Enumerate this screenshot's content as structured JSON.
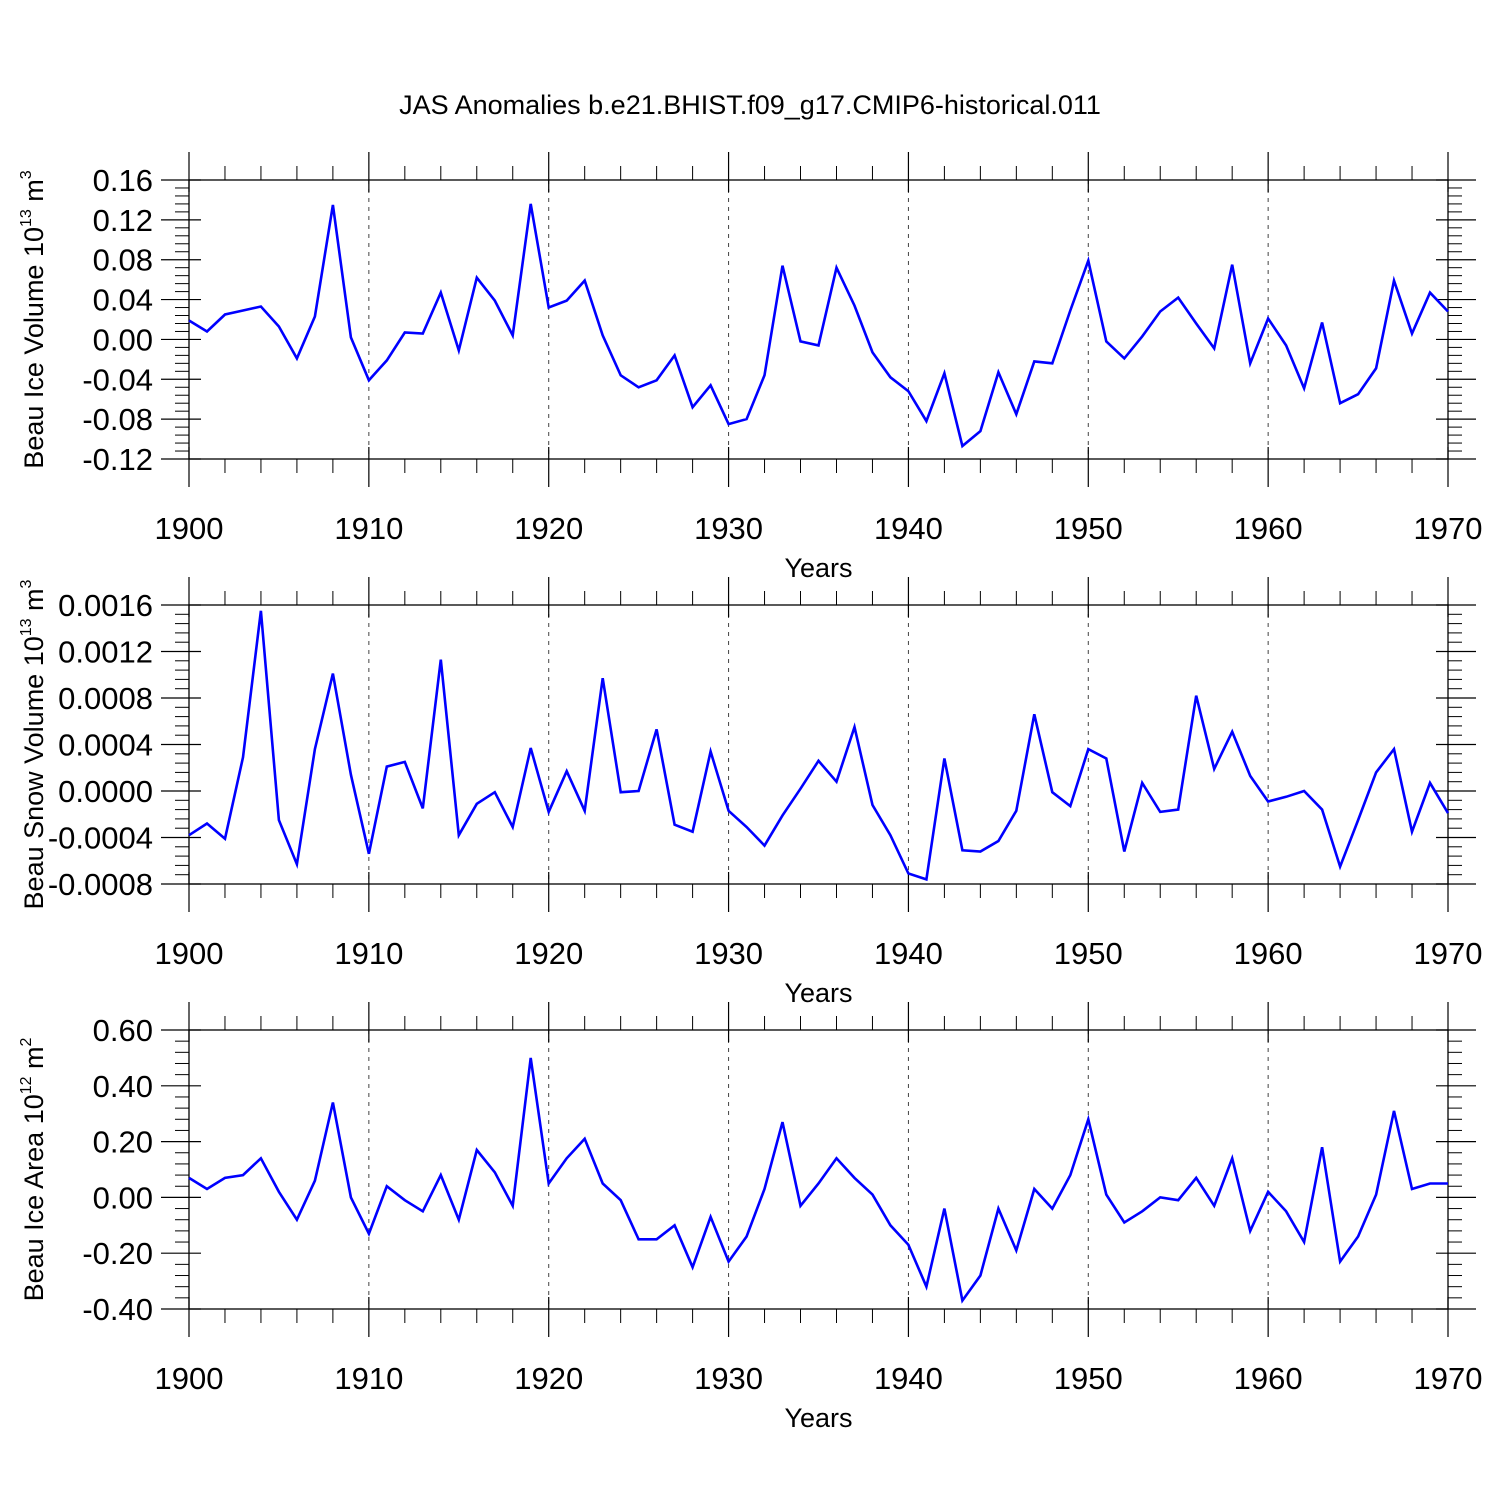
{
  "title": "JAS Anomalies b.e21.BHIST.f09_g17.CMIP6-historical.011",
  "line_color": "#0000ff",
  "chart_data": [
    {
      "type": "line",
      "ylabel": "Beau Ice Volume 10",
      "ylabel_exp": "13",
      "ylabel_unit": " m",
      "ylabel_unit_exp": "3",
      "xlabel": "Years",
      "xlim": [
        1900,
        1970
      ],
      "ylim": [
        -0.12,
        0.16
      ],
      "yticks": [
        -0.12,
        -0.08,
        -0.04,
        0.0,
        0.04,
        0.08,
        0.12,
        0.16
      ],
      "yticklabels": [
        "-0.12",
        "-0.08",
        "-0.04",
        "0.00",
        "0.04",
        "0.08",
        "0.12",
        "0.16"
      ],
      "xticks": [
        1900,
        1910,
        1920,
        1930,
        1940,
        1950,
        1960,
        1970
      ],
      "xticklabels": [
        "1900",
        "1910",
        "1920",
        "1930",
        "1940",
        "1950",
        "1960",
        "1970"
      ],
      "grid_x": "dashed",
      "x": [
        1900,
        1901,
        1902,
        1903,
        1904,
        1905,
        1906,
        1907,
        1908,
        1909,
        1910,
        1911,
        1912,
        1913,
        1914,
        1915,
        1916,
        1917,
        1918,
        1919,
        1920,
        1921,
        1922,
        1923,
        1924,
        1925,
        1926,
        1927,
        1928,
        1929,
        1930,
        1931,
        1932,
        1933,
        1934,
        1935,
        1936,
        1937,
        1938,
        1939,
        1940,
        1941,
        1942,
        1943,
        1944,
        1945,
        1946,
        1947,
        1948,
        1949,
        1950,
        1951,
        1952,
        1953,
        1954,
        1955,
        1956,
        1957,
        1958,
        1959,
        1960,
        1961,
        1962,
        1963,
        1964,
        1965,
        1966,
        1967,
        1968,
        1969,
        1970
      ],
      "values": [
        0.019,
        0.008,
        0.025,
        0.029,
        0.033,
        0.013,
        -0.019,
        0.023,
        0.135,
        0.002,
        -0.041,
        -0.021,
        0.007,
        0.006,
        0.047,
        -0.011,
        0.062,
        0.039,
        0.004,
        0.136,
        0.032,
        0.039,
        0.059,
        0.004,
        -0.036,
        -0.048,
        -0.041,
        -0.016,
        -0.068,
        -0.046,
        -0.085,
        -0.08,
        -0.036,
        0.074,
        -0.002,
        -0.006,
        0.072,
        0.034,
        -0.013,
        -0.038,
        -0.052,
        -0.082,
        -0.034,
        -0.107,
        -0.092,
        -0.033,
        -0.075,
        -0.022,
        -0.024,
        0.029,
        0.079,
        -0.002,
        -0.019,
        0.003,
        0.028,
        0.042,
        0.016,
        -0.009,
        0.075,
        -0.024,
        0.021,
        -0.006,
        -0.049,
        0.017,
        -0.064,
        -0.055,
        -0.029,
        0.059,
        0.006,
        0.047,
        0.028
      ]
    },
    {
      "type": "line",
      "ylabel": "Beau Snow Volume 10",
      "ylabel_exp": "13",
      "ylabel_unit": " m",
      "ylabel_unit_exp": "3",
      "xlabel": "Years",
      "xlim": [
        1900,
        1970
      ],
      "ylim": [
        -0.0008,
        0.0016
      ],
      "yticks": [
        -0.0008,
        -0.0004,
        0.0,
        0.0004,
        0.0008,
        0.0012,
        0.0016
      ],
      "yticklabels": [
        "-0.0008",
        "-0.0004",
        "0.0000",
        "0.0004",
        "0.0008",
        "0.0012",
        "0.0016"
      ],
      "xticks": [
        1900,
        1910,
        1920,
        1930,
        1940,
        1950,
        1960,
        1970
      ],
      "xticklabels": [
        "1900",
        "1910",
        "1920",
        "1930",
        "1940",
        "1950",
        "1960",
        "1970"
      ],
      "grid_x": "dashed",
      "x": [
        1900,
        1901,
        1902,
        1903,
        1904,
        1905,
        1906,
        1907,
        1908,
        1909,
        1910,
        1911,
        1912,
        1913,
        1914,
        1915,
        1916,
        1917,
        1918,
        1919,
        1920,
        1921,
        1922,
        1923,
        1924,
        1925,
        1926,
        1927,
        1928,
        1929,
        1930,
        1931,
        1932,
        1933,
        1934,
        1935,
        1936,
        1937,
        1938,
        1939,
        1940,
        1941,
        1942,
        1943,
        1944,
        1945,
        1946,
        1947,
        1948,
        1949,
        1950,
        1951,
        1952,
        1953,
        1954,
        1955,
        1956,
        1957,
        1958,
        1959,
        1960,
        1961,
        1962,
        1963,
        1964,
        1965,
        1966,
        1967,
        1968,
        1969,
        1970
      ],
      "values": [
        -0.00038,
        -0.00028,
        -0.00041,
        0.00029,
        0.00155,
        -0.00025,
        -0.00063,
        0.00036,
        0.00101,
        0.00014,
        -0.00054,
        0.00021,
        0.00025,
        -0.00015,
        0.00113,
        -0.00038,
        -0.00011,
        -1e-05,
        -0.00031,
        0.00037,
        -0.00018,
        0.00017,
        -0.00017,
        0.00097,
        -1e-05,
        0.0,
        0.00053,
        -0.00029,
        -0.00035,
        0.00034,
        -0.00017,
        -0.00031,
        -0.00047,
        -0.00021,
        2e-05,
        0.00026,
        8e-05,
        0.00055,
        -0.00012,
        -0.00038,
        -0.00071,
        -0.00076,
        0.00028,
        -0.00051,
        -0.00052,
        -0.00043,
        -0.00017,
        0.00066,
        -1e-05,
        -0.00013,
        0.00036,
        0.00028,
        -0.00052,
        7e-05,
        -0.00018,
        -0.00016,
        0.00082,
        0.00019,
        0.00051,
        0.00013,
        -9e-05,
        -5e-05,
        0.0,
        -0.00016,
        -0.00065,
        -0.00025,
        0.00016,
        0.00036,
        -0.00035,
        7e-05,
        -0.00019
      ]
    },
    {
      "type": "line",
      "ylabel": "Beau Ice Area 10",
      "ylabel_exp": "12",
      "ylabel_unit": " m",
      "ylabel_unit_exp": "2",
      "xlabel": "Years",
      "xlim": [
        1900,
        1970
      ],
      "ylim": [
        -0.4,
        0.6
      ],
      "yticks": [
        -0.4,
        -0.2,
        0.0,
        0.2,
        0.4,
        0.6
      ],
      "yticklabels": [
        "-0.40",
        "-0.20",
        "0.00",
        "0.20",
        "0.40",
        "0.60"
      ],
      "xticks": [
        1900,
        1910,
        1920,
        1930,
        1940,
        1950,
        1960,
        1970
      ],
      "xticklabels": [
        "1900",
        "1910",
        "1920",
        "1930",
        "1940",
        "1950",
        "1960",
        "1970"
      ],
      "grid_x": "dashed",
      "x": [
        1900,
        1901,
        1902,
        1903,
        1904,
        1905,
        1906,
        1907,
        1908,
        1909,
        1910,
        1911,
        1912,
        1913,
        1914,
        1915,
        1916,
        1917,
        1918,
        1919,
        1920,
        1921,
        1922,
        1923,
        1924,
        1925,
        1926,
        1927,
        1928,
        1929,
        1930,
        1931,
        1932,
        1933,
        1934,
        1935,
        1936,
        1937,
        1938,
        1939,
        1940,
        1941,
        1942,
        1943,
        1944,
        1945,
        1946,
        1947,
        1948,
        1949,
        1950,
        1951,
        1952,
        1953,
        1954,
        1955,
        1956,
        1957,
        1958,
        1959,
        1960,
        1961,
        1962,
        1963,
        1964,
        1965,
        1966,
        1967,
        1968,
        1969,
        1970
      ],
      "values": [
        0.07,
        0.03,
        0.07,
        0.08,
        0.14,
        0.02,
        -0.08,
        0.06,
        0.34,
        0.0,
        -0.13,
        0.04,
        -0.01,
        -0.05,
        0.08,
        -0.08,
        0.17,
        0.09,
        -0.03,
        0.5,
        0.05,
        0.14,
        0.21,
        0.05,
        -0.01,
        -0.15,
        -0.15,
        -0.1,
        -0.25,
        -0.07,
        -0.23,
        -0.14,
        0.03,
        0.27,
        -0.03,
        0.05,
        0.14,
        0.07,
        0.01,
        -0.1,
        -0.17,
        -0.32,
        -0.04,
        -0.37,
        -0.28,
        -0.04,
        -0.19,
        0.03,
        -0.04,
        0.08,
        0.28,
        0.01,
        -0.09,
        -0.05,
        0.0,
        -0.01,
        0.07,
        -0.03,
        0.14,
        -0.12,
        0.02,
        -0.05,
        -0.16,
        0.18,
        -0.23,
        -0.14,
        0.01,
        0.31,
        0.03,
        0.05,
        0.05
      ]
    }
  ]
}
